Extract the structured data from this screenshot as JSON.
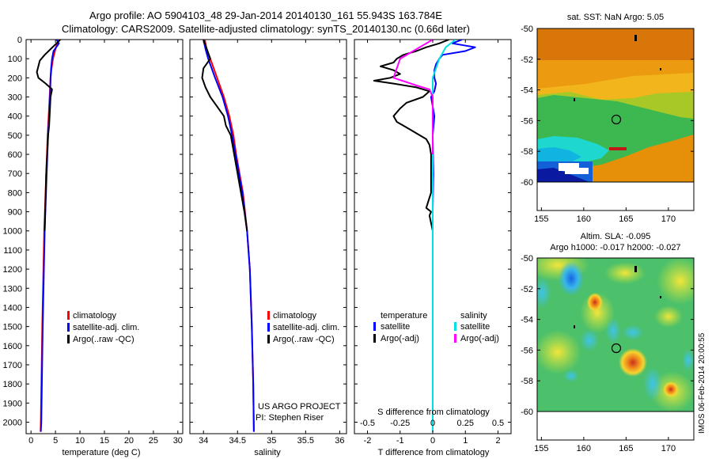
{
  "header": {
    "line1": "Argo profile: AO 5904103_48 29-Jan-2014 20140130_161 55.943S 163.784E",
    "line2": "Climatology: CARS2009. Satellite-adjusted climatology: synTS_20140130.nc (0.66d later)"
  },
  "colors": {
    "climatology": "#ff0000",
    "satellite": "#0000ff",
    "argo": "#000000",
    "satellite_salinity": "#00e0e0",
    "argo_salinity": "#ff00ff"
  },
  "chart_data": [
    {
      "id": "temperature",
      "type": "line",
      "xlabel": "temperature (deg C)",
      "xlim": [
        -1,
        31
      ],
      "xticks": [
        0,
        5,
        10,
        15,
        20,
        25,
        30
      ],
      "ylim": [
        0,
        2060
      ],
      "y_reversed": true,
      "yticks": [
        0,
        100,
        200,
        300,
        400,
        500,
        600,
        700,
        800,
        900,
        1000,
        1100,
        1200,
        1300,
        1400,
        1500,
        1600,
        1700,
        1800,
        1900,
        2000
      ],
      "legend": [
        "climatology",
        "satellite-adj. clim.",
        "Argo(..raw -QC)"
      ],
      "series": [
        {
          "name": "climatology",
          "color": "climatology",
          "y": [
            0,
            50,
            100,
            150,
            200,
            300,
            400,
            500,
            700,
            1000,
            1500,
            2000,
            2050
          ],
          "x": [
            5.6,
            5.0,
            4.5,
            4.2,
            4.0,
            3.8,
            3.6,
            3.4,
            3.1,
            2.7,
            2.3,
            2.0,
            1.95
          ]
        },
        {
          "name": "satellite-adj. clim.",
          "color": "satellite",
          "y": [
            0,
            20,
            60,
            100,
            150,
            200,
            300,
            400,
            500,
            700,
            1000,
            1500,
            2000,
            2050
          ],
          "x": [
            5.2,
            5.7,
            4.6,
            4.3,
            4.1,
            4.0,
            3.9,
            3.7,
            3.5,
            3.2,
            2.8,
            2.4,
            2.1,
            2.0
          ]
        },
        {
          "name": "Argo(..raw -QC)",
          "color": "argo",
          "y": [
            0,
            20,
            50,
            80,
            110,
            140,
            170,
            200,
            230,
            260,
            300,
            350,
            400,
            450,
            500,
            600,
            700,
            800,
            900,
            1000
          ],
          "x": [
            6.0,
            5.2,
            4.0,
            2.8,
            1.8,
            1.5,
            1.2,
            1.5,
            3.0,
            4.3,
            4.0,
            3.9,
            3.8,
            3.7,
            3.5,
            3.3,
            3.1,
            3.0,
            2.9,
            2.8
          ]
        }
      ]
    },
    {
      "id": "salinity",
      "type": "line",
      "xlabel": "salinity",
      "xlim": [
        33.8,
        36.1
      ],
      "xticks": [
        34,
        34.5,
        35,
        35.5,
        36
      ],
      "ylim": [
        0,
        2060
      ],
      "y_reversed": true,
      "legend": [
        "climatology",
        "satellite-adj. clim.",
        "Argo(..raw -QC)"
      ],
      "series": [
        {
          "name": "climatology",
          "color": "climatology",
          "y": [
            0,
            60,
            100,
            200,
            300,
            400,
            500,
            600,
            800,
            1000,
            1200,
            1500,
            1800,
            2050
          ],
          "x": [
            34.02,
            34.05,
            34.1,
            34.2,
            34.3,
            34.38,
            34.44,
            34.48,
            34.58,
            34.64,
            34.68,
            34.71,
            34.73,
            34.74
          ]
        },
        {
          "name": "satellite-adj. clim.",
          "color": "satellite",
          "y": [
            0,
            50,
            100,
            200,
            300,
            400,
            500,
            600,
            800,
            1000,
            1200,
            1500,
            1800,
            2050
          ],
          "x": [
            34.0,
            34.03,
            34.07,
            34.17,
            34.28,
            34.36,
            34.42,
            34.47,
            34.57,
            34.64,
            34.68,
            34.71,
            34.73,
            34.74
          ]
        },
        {
          "name": "Argo(..raw -QC)",
          "color": "argo",
          "y": [
            0,
            50,
            100,
            150,
            200,
            250,
            300,
            350,
            400,
            450,
            500,
            600,
            700,
            800,
            900,
            1000
          ],
          "x": [
            34.0,
            34.05,
            34.1,
            34.0,
            33.98,
            34.03,
            34.1,
            34.2,
            34.3,
            34.33,
            34.4,
            34.45,
            34.5,
            34.55,
            34.6,
            34.64
          ]
        }
      ]
    },
    {
      "id": "difference",
      "type": "line",
      "xlabel": "T difference from climatology",
      "xlim": [
        -2.4,
        2.4
      ],
      "xticks": [
        -2,
        -1,
        0,
        1,
        2
      ],
      "top_label": "S difference from climatology",
      "top_ticks": [
        {
          "label": "-0.5",
          "t": -2
        },
        {
          "label": "-0.25",
          "t": -1
        },
        {
          "label": "0",
          "t": 0
        },
        {
          "label": "0.25",
          "t": 1
        },
        {
          "label": "0.5",
          "t": 2
        }
      ],
      "ylim": [
        0,
        2060
      ],
      "y_reversed": true,
      "legend_temperature": {
        "heading": "temperature",
        "items": [
          "satellite",
          "Argo(-adj)"
        ]
      },
      "legend_salinity": {
        "heading": "salinity",
        "items": [
          "satellite",
          "Argo(-adj)"
        ]
      },
      "series": [
        {
          "name": "temperature satellite",
          "color": "satellite",
          "y": [
            0,
            20,
            40,
            60,
            80,
            100,
            130,
            160,
            200,
            230,
            270,
            300,
            350,
            400,
            500,
            700,
            900,
            1100,
            1500,
            2050
          ],
          "x": [
            0.9,
            0.6,
            1.3,
            1.0,
            0.3,
            0.2,
            0.1,
            0.05,
            0.05,
            0.1,
            0.05,
            -0.05,
            0.0,
            0.05,
            0.0,
            0.02,
            0.0,
            0.0,
            0.0,
            0.0
          ]
        },
        {
          "name": "temperature Argo(-adj)",
          "color": "argo",
          "y": [
            0,
            20,
            40,
            60,
            80,
            100,
            120,
            140,
            160,
            180,
            200,
            215,
            230,
            250,
            270,
            300,
            330,
            360,
            400,
            430,
            450,
            480,
            500,
            520,
            550,
            600,
            700,
            800,
            880,
            900,
            920,
            1000
          ],
          "x": [
            0.5,
            0.2,
            -0.2,
            -0.5,
            -0.9,
            -1.1,
            -1.2,
            -1.6,
            -1.2,
            -1.0,
            -1.3,
            -1.8,
            -1.2,
            -0.5,
            -0.1,
            -0.3,
            -0.8,
            -1.0,
            -1.2,
            -1.1,
            -0.9,
            -0.6,
            -0.4,
            -0.2,
            -0.1,
            -0.05,
            -0.05,
            -0.05,
            -0.2,
            -0.05,
            -0.1,
            0.0
          ]
        },
        {
          "name": "salinity satellite",
          "color": "satellite_salinity",
          "y": [
            0,
            40,
            100,
            150,
            200,
            300,
            500,
            700,
            1000,
            1500,
            2050
          ],
          "x": [
            0.7,
            0.4,
            0.2,
            0.1,
            0.0,
            0.0,
            0.0,
            0.0,
            0.0,
            0.0,
            0.0
          ]
        },
        {
          "name": "salinity Argo(-adj)",
          "color": "argo_salinity",
          "y": [
            0,
            30,
            60,
            100,
            150,
            200,
            240,
            260,
            300,
            400,
            500,
            600
          ],
          "x": [
            0.0,
            -0.3,
            -0.6,
            -1.0,
            -1.1,
            -1.2,
            -0.5,
            -0.1,
            0.0,
            0.0,
            0.0,
            0.0
          ]
        }
      ]
    }
  ],
  "credit": {
    "line1": "US ARGO PROJECT",
    "line2": "PI: Stephen Riser"
  },
  "maps": {
    "sst": {
      "title": "sat. SST: NaN Argo: 5.05"
    },
    "sla": {
      "title1": "Altim. SLA: -0.095",
      "title2": "Argo h1000: -0.017 h2000: -0.027"
    },
    "yticks": [
      "-50",
      "-52",
      "-54",
      "-56",
      "-58",
      "-60"
    ],
    "xticks": [
      "155",
      "160",
      "165",
      "170"
    ],
    "footer": "IMOS 06-Feb-2014 20:00:55"
  }
}
